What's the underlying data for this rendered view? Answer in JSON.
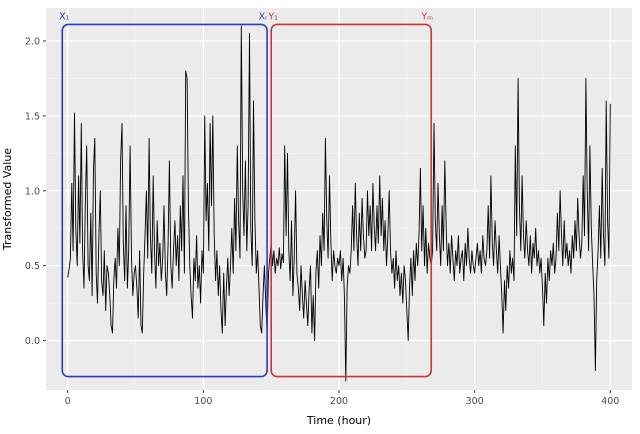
{
  "figure": {
    "background": "#ffffff",
    "panel_background": "#EBEBEB"
  },
  "chart_data": {
    "type": "line",
    "title": "",
    "xlabel": "Time (hour)",
    "ylabel": "Transformed Value",
    "legend": "none",
    "grid": true,
    "xlim": [
      -16,
      416
    ],
    "ylim": [
      -0.33,
      2.22
    ],
    "x_ticks": [
      0,
      100,
      200,
      300,
      400
    ],
    "x_tick_labels": [
      "0",
      "100",
      "200",
      "300",
      "400"
    ],
    "y_tick_values": [
      0,
      0.5,
      1,
      1.5,
      2
    ],
    "y_tick_labels": [
      "0.0",
      "0.5",
      "1.0",
      "1.5",
      "2.0"
    ],
    "x_minor": [
      50,
      150,
      250,
      350
    ],
    "y_minor": [
      0.25,
      0.75,
      1.25,
      1.75
    ],
    "panel_bg": "#EBEBEB",
    "grid_major_color": "#FFFFFF",
    "grid_minor_color": "#F4F4F4",
    "tick_color": "#333333",
    "tick_label_color": "#4D4D4D",
    "line_color": "#000000",
    "x_start": 0,
    "x_step": 1,
    "values": [
      0.42,
      0.48,
      0.55,
      1.05,
      0.6,
      1.52,
      0.75,
      0.5,
      1.1,
      0.65,
      1.45,
      0.6,
      0.35,
      0.9,
      1.3,
      0.5,
      0.4,
      0.85,
      0.3,
      1.15,
      1.35,
      0.45,
      0.25,
      0.7,
      1.0,
      0.4,
      0.3,
      0.6,
      0.2,
      0.5,
      0.45,
      0.3,
      0.1,
      0.05,
      0.4,
      0.55,
      0.35,
      0.75,
      0.5,
      1.2,
      1.45,
      0.65,
      0.4,
      0.9,
      0.35,
      0.6,
      1.3,
      0.55,
      0.3,
      0.45,
      0.5,
      0.35,
      0.15,
      0.6,
      0.1,
      0.05,
      0.45,
      0.7,
      1.0,
      0.55,
      1.35,
      0.7,
      0.45,
      1.1,
      0.6,
      0.35,
      0.8,
      0.5,
      0.65,
      0.4,
      0.55,
      0.9,
      0.45,
      0.3,
      0.65,
      1.2,
      0.5,
      0.35,
      0.6,
      0.8,
      0.5,
      0.7,
      0.4,
      0.9,
      0.6,
      1.1,
      0.45,
      1.8,
      1.75,
      0.9,
      0.5,
      0.3,
      0.15,
      0.55,
      0.4,
      0.7,
      0.35,
      0.5,
      0.25,
      0.6,
      0.45,
      1.5,
      0.8,
      1.05,
      0.6,
      1.45,
      0.9,
      1.5,
      0.7,
      0.4,
      0.6,
      0.3,
      0.5,
      0.2,
      0.05,
      0.45,
      0.1,
      0.35,
      0.55,
      0.3,
      0.5,
      0.75,
      0.45,
      0.95,
      0.6,
      1.3,
      0.8,
      0.55,
      2.1,
      1.0,
      0.7,
      1.2,
      0.6,
      0.9,
      2.05,
      0.75,
      0.5,
      1.6,
      0.8,
      0.45,
      0.6,
      0.35,
      0.1,
      0.05,
      0.3,
      0.5,
      0.25,
      0.05,
      0.45,
      0.55,
      0.65,
      0.5,
      0.6,
      0.45,
      0.55,
      0.5,
      0.62,
      0.48,
      0.58,
      0.52,
      1.3,
      0.7,
      1.25,
      0.6,
      0.4,
      0.8,
      0.3,
      0.55,
      1.0,
      0.45,
      0.35,
      0.2,
      0.5,
      0.3,
      0.15,
      0.4,
      0.25,
      0.1,
      0.35,
      0.5,
      0.05,
      0.3,
      0.0,
      0.45,
      0.6,
      0.35,
      0.7,
      0.5,
      0.85,
      0.6,
      1.35,
      0.8,
      0.55,
      1.1,
      0.65,
      0.4,
      0.6,
      0.5,
      0.45,
      0.55,
      0.5,
      0.6,
      0.4,
      0.55,
      0.3,
      -0.27,
      0.35,
      0.5,
      0.45,
      0.6,
      0.9,
      0.6,
      1.05,
      0.7,
      0.5,
      0.85,
      0.6,
      0.95,
      0.7,
      0.55,
      0.6,
      1.0,
      0.7,
      0.9,
      0.6,
      1.05,
      0.75,
      0.6,
      0.9,
      0.65,
      1.1,
      0.7,
      0.95,
      0.6,
      0.8,
      0.5,
      0.7,
      1.0,
      0.6,
      0.45,
      0.55,
      0.35,
      0.6,
      0.4,
      0.5,
      0.3,
      0.45,
      0.25,
      0.5,
      0.4,
      0.2,
      0.0,
      0.35,
      0.55,
      0.3,
      0.6,
      0.4,
      0.65,
      0.5,
      0.7,
      1.15,
      0.6,
      0.9,
      0.5,
      0.75,
      0.45,
      0.65,
      0.55,
      0.5,
      0.6,
      1.45,
      0.8,
      0.6,
      1.05,
      0.7,
      0.5,
      0.9,
      0.6,
      1.2,
      0.75,
      0.5,
      0.65,
      0.45,
      0.7,
      0.55,
      0.4,
      0.6,
      0.5,
      0.7,
      0.45,
      0.55,
      0.6,
      0.4,
      0.65,
      0.5,
      0.75,
      0.55,
      0.45,
      0.6,
      0.5,
      0.45,
      0.55,
      0.65,
      0.5,
      0.6,
      0.45,
      0.7,
      0.55,
      0.5,
      0.6,
      0.9,
      0.55,
      1.1,
      0.65,
      0.5,
      0.8,
      0.6,
      0.45,
      0.7,
      0.5,
      0.3,
      0.05,
      0.4,
      0.2,
      0.5,
      0.35,
      0.6,
      0.45,
      0.55,
      0.4,
      1.3,
      0.7,
      1.75,
      0.9,
      0.6,
      1.1,
      0.7,
      0.55,
      0.8,
      0.6,
      0.5,
      0.7,
      0.45,
      0.65,
      0.55,
      0.75,
      0.5,
      0.6,
      0.45,
      0.55,
      0.35,
      0.1,
      0.45,
      0.25,
      0.55,
      0.4,
      0.6,
      0.5,
      0.65,
      0.45,
      0.55,
      0.85,
      0.6,
      1.0,
      0.7,
      0.5,
      0.8,
      0.55,
      0.65,
      0.5,
      0.6,
      0.45,
      0.7,
      0.55,
      0.8,
      0.6,
      0.95,
      0.7,
      0.55,
      0.65,
      1.1,
      0.7,
      1.75,
      1.0,
      0.6,
      1.3,
      0.75,
      0.5,
      0.3,
      -0.2,
      0.4,
      0.6,
      0.9,
      0.55,
      1.15,
      0.7,
      0.5,
      1.6,
      0.8,
      0.55,
      1.58
    ],
    "annotations": [
      {
        "name": "window-x",
        "color": "#2d3bc4",
        "x0": -4,
        "x1": 147,
        "y0": -0.24,
        "y1": 2.11,
        "label_left": "X₁",
        "label_right": "Xᵣ"
      },
      {
        "name": "window-y",
        "color": "#c63636",
        "x0": 150,
        "x1": 268,
        "y0": -0.24,
        "y1": 2.11,
        "label_left": "Y₁",
        "label_right": "Yₘ"
      }
    ]
  }
}
